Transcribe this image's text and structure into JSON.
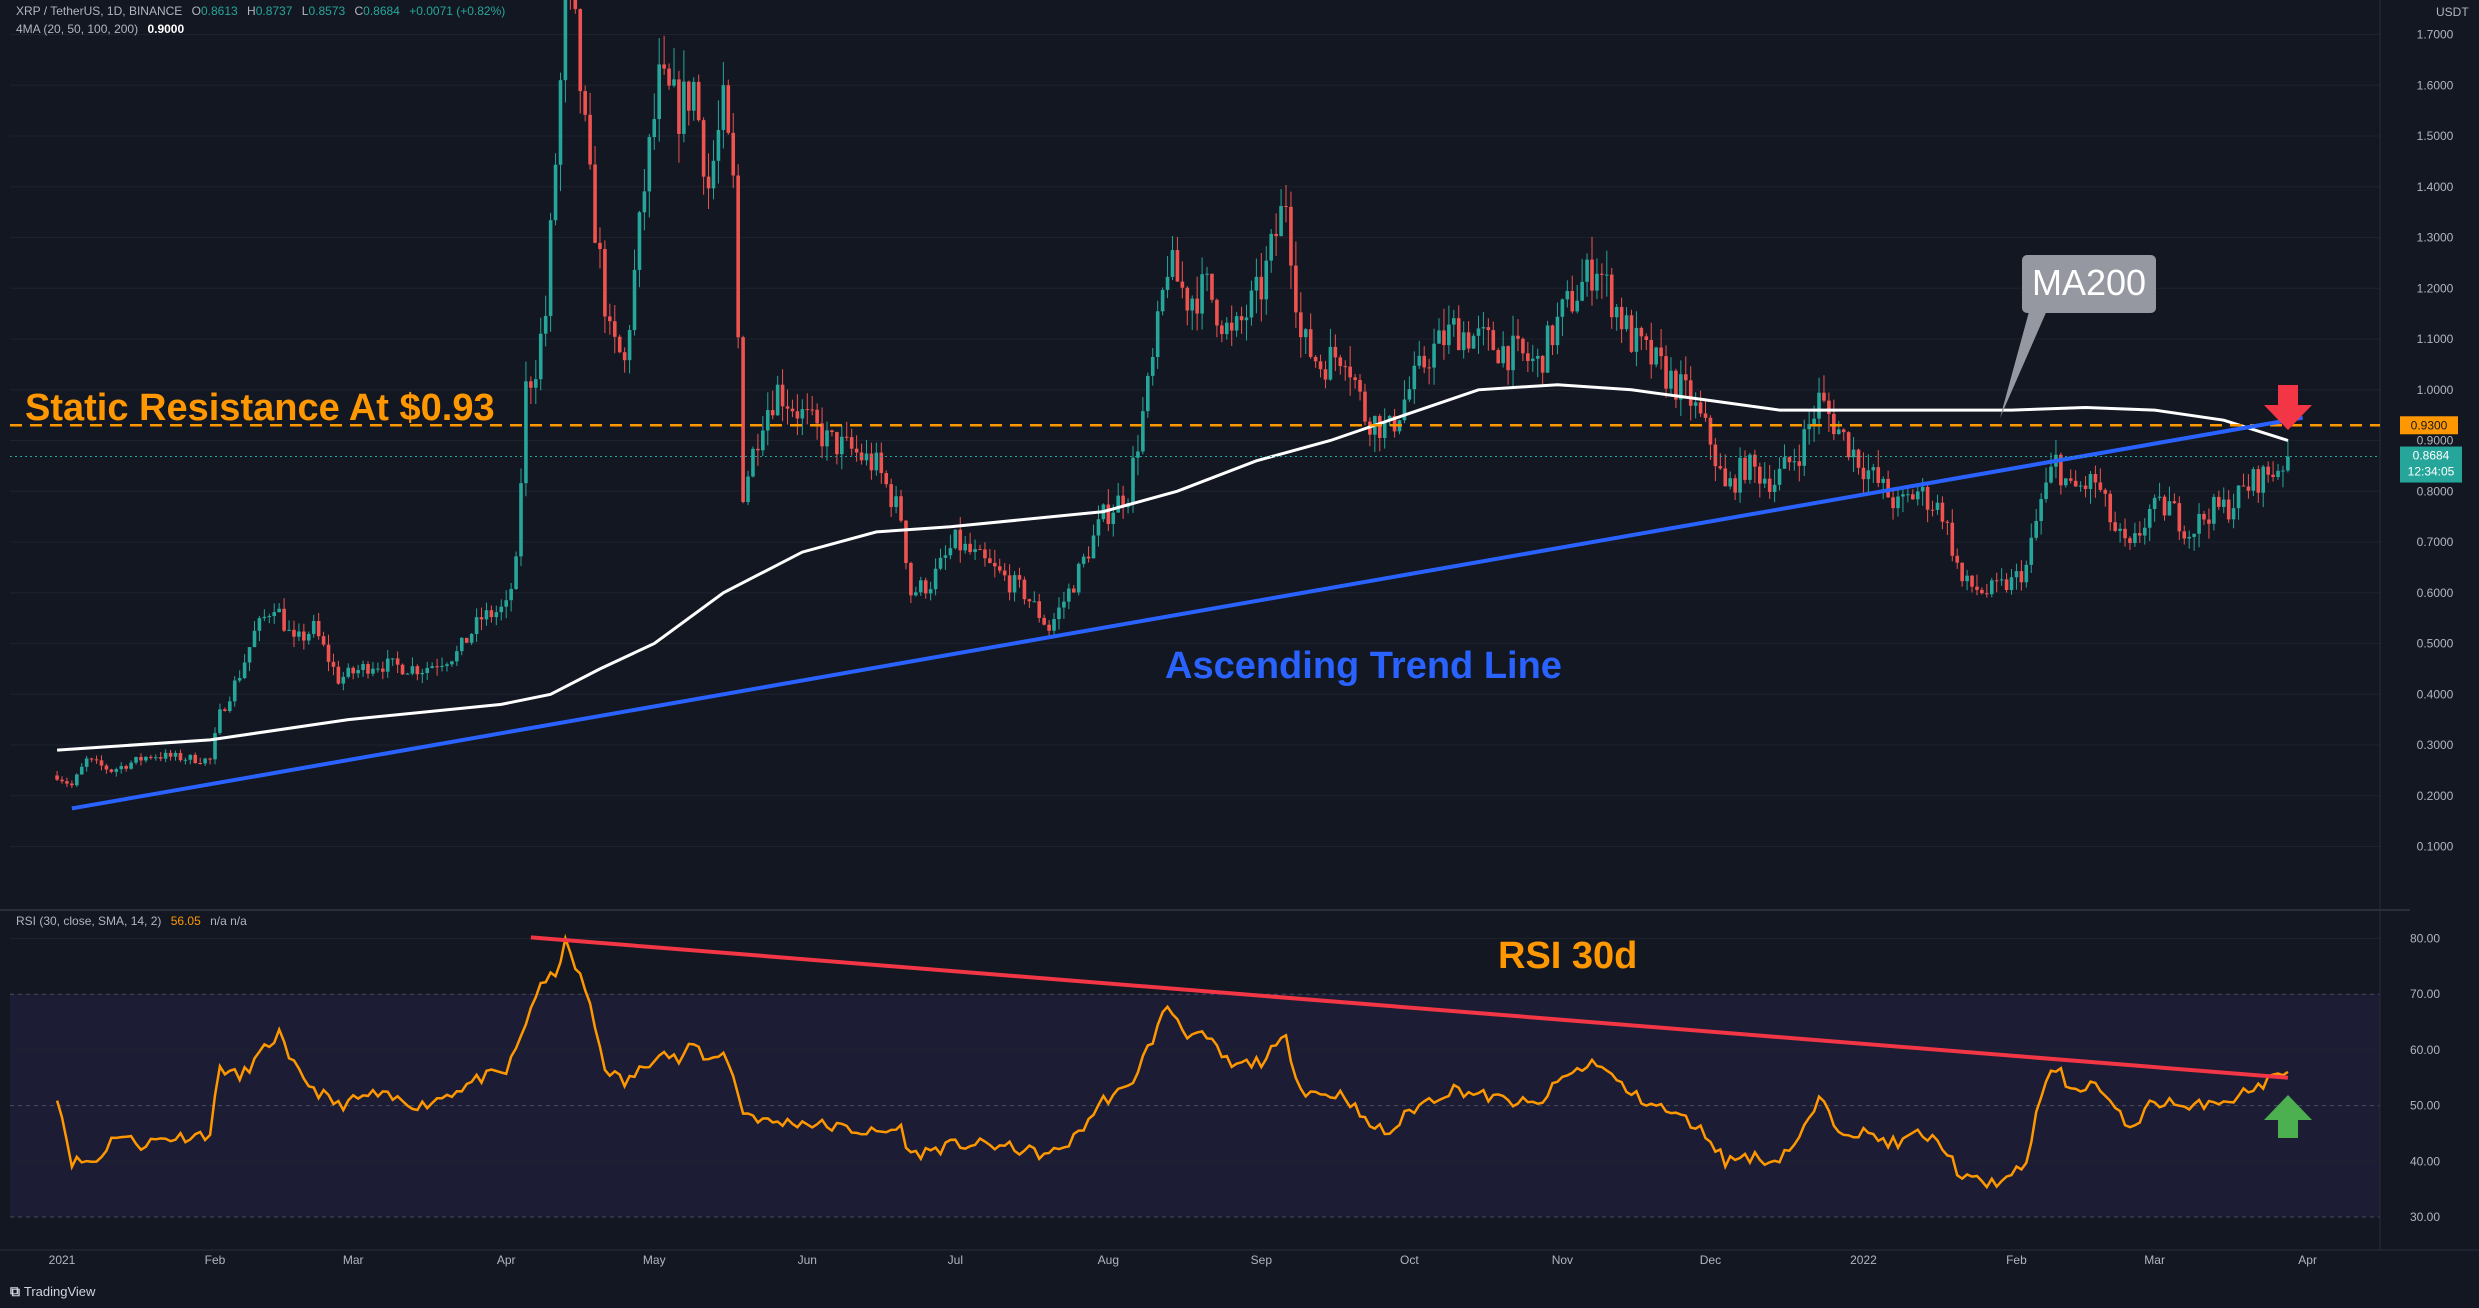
{
  "header": {
    "symbol": "XRP / TetherUS, 1D, BINANCE",
    "o_label": "O",
    "o": "0.8613",
    "h_label": "H",
    "h": "0.8737",
    "l_label": "L",
    "l": "0.8573",
    "c_label": "C",
    "c": "0.8684",
    "change": "+0.0071 (+0.82%)",
    "ma_label": "4MA (20, 50, 100, 200)",
    "ma_value": "0.9000",
    "rsi_label": "RSI (30, close, SMA, 14, 2)",
    "rsi_value": "56.05",
    "rsi_na": "n/a  n/a"
  },
  "price_axis": {
    "currency": "USDT",
    "ticks": [
      "1.7000",
      "1.6000",
      "1.5000",
      "1.4000",
      "1.3000",
      "1.2000",
      "1.1000",
      "1.0000",
      "0.9000",
      "0.8000",
      "0.7000",
      "0.6000",
      "0.5000",
      "0.4000",
      "0.3000",
      "0.2000",
      "0.1000"
    ],
    "resistance_tag": "0.9300",
    "last_price_tag": "0.8684",
    "countdown_tag": "12:34:05"
  },
  "rsi_axis": {
    "ticks": [
      "80.00",
      "70.00",
      "60.00",
      "50.00",
      "40.00",
      "30.00"
    ]
  },
  "time_axis": {
    "labels": [
      "2021",
      "Feb",
      "Mar",
      "Apr",
      "May",
      "Jun",
      "Jul",
      "Aug",
      "Sep",
      "Oct",
      "Nov",
      "Dec",
      "2022",
      "Feb",
      "Mar",
      "Apr"
    ]
  },
  "annotations": {
    "resistance_label": "Static Resistance At $0.93",
    "ma200_label": "MA200",
    "trendline_label": "Ascending Trend Line",
    "rsi_label": "RSI 30d"
  },
  "watermark": "TradingView",
  "colors": {
    "background": "#131722",
    "up_candle": "#26a69a",
    "down_candle": "#ef5350",
    "ma200": "#ffffff",
    "trend_line": "#2962ff",
    "resistance": "#ff9800",
    "rsi_line": "#ff9800",
    "rsi_trend": "#f23645",
    "arrow_down": "#f23645",
    "arrow_up": "#4caf50",
    "label_orange": "#ff9800",
    "label_blue": "#2962ff"
  },
  "chart_data": [
    {
      "type": "candlestick",
      "title": "XRP / TetherUS, 1D, BINANCE",
      "ylabel": "USDT",
      "ylim": [
        0.05,
        1.8
      ],
      "x_range": [
        "2020-12-31",
        "2022-03-28"
      ],
      "anchors": [
        [
          "2020-12-31",
          0.24
        ],
        [
          "2021-01-03",
          0.22
        ],
        [
          "2021-01-06",
          0.27
        ],
        [
          "2021-01-11",
          0.25
        ],
        [
          "2021-01-19",
          0.28
        ],
        [
          "2021-01-31",
          0.27
        ],
        [
          "2021-02-02",
          0.36
        ],
        [
          "2021-02-06",
          0.44
        ],
        [
          "2021-02-09",
          0.52
        ],
        [
          "2021-02-13",
          0.58
        ],
        [
          "2021-02-17",
          0.5
        ],
        [
          "2021-02-21",
          0.53
        ],
        [
          "2021-02-26",
          0.43
        ],
        [
          "2021-03-05",
          0.46
        ],
        [
          "2021-03-15",
          0.45
        ],
        [
          "2021-03-22",
          0.48
        ],
        [
          "2021-03-27",
          0.55
        ],
        [
          "2021-04-01",
          0.57
        ],
        [
          "2021-04-03",
          0.65
        ],
        [
          "2021-04-05",
          1.0
        ],
        [
          "2021-04-07",
          1.05
        ],
        [
          "2021-04-09",
          1.15
        ],
        [
          "2021-04-11",
          1.45
        ],
        [
          "2021-04-13",
          1.75
        ],
        [
          "2021-04-15",
          1.7
        ],
        [
          "2021-04-18",
          1.4
        ],
        [
          "2021-04-22",
          1.1
        ],
        [
          "2021-04-25",
          1.05
        ],
        [
          "2021-04-29",
          1.4
        ],
        [
          "2021-05-02",
          1.6
        ],
        [
          "2021-05-06",
          1.55
        ],
        [
          "2021-05-09",
          1.6
        ],
        [
          "2021-05-12",
          1.4
        ],
        [
          "2021-05-15",
          1.55
        ],
        [
          "2021-05-17",
          1.4
        ],
        [
          "2021-05-19",
          0.8
        ],
        [
          "2021-05-23",
          0.95
        ],
        [
          "2021-05-26",
          1.0
        ],
        [
          "2021-05-31",
          0.95
        ],
        [
          "2021-06-05",
          0.9
        ],
        [
          "2021-06-10",
          0.88
        ],
        [
          "2021-06-15",
          0.85
        ],
        [
          "2021-06-20",
          0.75
        ],
        [
          "2021-06-22",
          0.6
        ],
        [
          "2021-06-26",
          0.62
        ],
        [
          "2021-07-01",
          0.7
        ],
        [
          "2021-07-08",
          0.65
        ],
        [
          "2021-07-15",
          0.6
        ],
        [
          "2021-07-20",
          0.53
        ],
        [
          "2021-07-25",
          0.62
        ],
        [
          "2021-07-31",
          0.75
        ],
        [
          "2021-08-05",
          0.8
        ],
        [
          "2021-08-10",
          1.05
        ],
        [
          "2021-08-13",
          1.25
        ],
        [
          "2021-08-17",
          1.18
        ],
        [
          "2021-08-21",
          1.2
        ],
        [
          "2021-08-26",
          1.1
        ],
        [
          "2021-09-01",
          1.2
        ],
        [
          "2021-09-06",
          1.38
        ],
        [
          "2021-09-09",
          1.1
        ],
        [
          "2021-09-13",
          1.05
        ],
        [
          "2021-09-18",
          1.08
        ],
        [
          "2021-09-22",
          0.95
        ],
        [
          "2021-09-27",
          0.92
        ],
        [
          "2021-10-01",
          1.0
        ],
        [
          "2021-10-05",
          1.07
        ],
        [
          "2021-10-10",
          1.12
        ],
        [
          "2021-10-15",
          1.1
        ],
        [
          "2021-10-20",
          1.08
        ],
        [
          "2021-10-27",
          1.05
        ],
        [
          "2021-11-01",
          1.15
        ],
        [
          "2021-11-08",
          1.25
        ],
        [
          "2021-11-10",
          1.2
        ],
        [
          "2021-11-15",
          1.1
        ],
        [
          "2021-11-20",
          1.05
        ],
        [
          "2021-11-27",
          0.98
        ],
        [
          "2021-12-01",
          0.9
        ],
        [
          "2021-12-04",
          0.8
        ],
        [
          "2021-12-08",
          0.85
        ],
        [
          "2021-12-14",
          0.82
        ],
        [
          "2021-12-19",
          0.88
        ],
        [
          "2021-12-23",
          0.98
        ],
        [
          "2021-12-27",
          0.92
        ],
        [
          "2022-01-01",
          0.85
        ],
        [
          "2022-01-08",
          0.77
        ],
        [
          "2022-01-12",
          0.8
        ],
        [
          "2022-01-17",
          0.76
        ],
        [
          "2022-01-21",
          0.62
        ],
        [
          "2022-01-26",
          0.6
        ],
        [
          "2022-01-31",
          0.62
        ],
        [
          "2022-02-03",
          0.65
        ],
        [
          "2022-02-06",
          0.78
        ],
        [
          "2022-02-09",
          0.86
        ],
        [
          "2022-02-12",
          0.8
        ],
        [
          "2022-02-17",
          0.82
        ],
        [
          "2022-02-21",
          0.72
        ],
        [
          "2022-02-24",
          0.68
        ],
        [
          "2022-02-28",
          0.76
        ],
        [
          "2022-03-04",
          0.77
        ],
        [
          "2022-03-08",
          0.72
        ],
        [
          "2022-03-12",
          0.76
        ],
        [
          "2022-03-16",
          0.77
        ],
        [
          "2022-03-21",
          0.82
        ],
        [
          "2022-03-25",
          0.84
        ],
        [
          "2022-03-28",
          0.8684
        ]
      ],
      "ma200": [
        [
          "2020-12-31",
          0.29
        ],
        [
          "2021-01-31",
          0.31
        ],
        [
          "2021-02-28",
          0.35
        ],
        [
          "2021-03-31",
          0.38
        ],
        [
          "2021-04-10",
          0.4
        ],
        [
          "2021-04-20",
          0.45
        ],
        [
          "2021-05-01",
          0.5
        ],
        [
          "2021-05-15",
          0.6
        ],
        [
          "2021-05-31",
          0.68
        ],
        [
          "2021-06-15",
          0.72
        ],
        [
          "2021-06-30",
          0.73
        ],
        [
          "2021-07-31",
          0.76
        ],
        [
          "2021-08-15",
          0.8
        ],
        [
          "2021-08-31",
          0.86
        ],
        [
          "2021-09-15",
          0.9
        ],
        [
          "2021-09-30",
          0.95
        ],
        [
          "2021-10-15",
          1.0
        ],
        [
          "2021-10-31",
          1.01
        ],
        [
          "2021-11-15",
          1.0
        ],
        [
          "2021-11-30",
          0.98
        ],
        [
          "2021-12-15",
          0.96
        ],
        [
          "2021-12-31",
          0.96
        ],
        [
          "2022-01-31",
          0.96
        ],
        [
          "2022-02-15",
          0.965
        ],
        [
          "2022-03-01",
          0.96
        ],
        [
          "2022-03-15",
          0.94
        ],
        [
          "2022-03-28",
          0.9
        ]
      ],
      "resistance_level": 0.93,
      "trend_line": [
        [
          "2021-01-03",
          0.175
        ],
        [
          "2022-03-31",
          0.945
        ]
      ]
    },
    {
      "type": "line",
      "title": "RSI (30, close, SMA, 14, 2)",
      "ylim": [
        30,
        80
      ],
      "bands": [
        30,
        50,
        70
      ],
      "x_range": [
        "2020-12-31",
        "2022-03-28"
      ],
      "anchors": [
        [
          "2020-12-31",
          52
        ],
        [
          "2021-01-03",
          40
        ],
        [
          "2021-01-08",
          40
        ],
        [
          "2021-01-12",
          45
        ],
        [
          "2021-01-17",
          43
        ],
        [
          "2021-01-21",
          44
        ],
        [
          "2021-01-31",
          45
        ],
        [
          "2021-02-02",
          57
        ],
        [
          "2021-02-06",
          55
        ],
        [
          "2021-02-09",
          58
        ],
        [
          "2021-02-14",
          63
        ],
        [
          "2021-02-16",
          58
        ],
        [
          "2021-02-21",
          53
        ],
        [
          "2021-02-26",
          50
        ],
        [
          "2021-03-05",
          52
        ],
        [
          "2021-03-15",
          50
        ],
        [
          "2021-03-20",
          52
        ],
        [
          "2021-03-27",
          55
        ],
        [
          "2021-04-01",
          56
        ],
        [
          "2021-04-03",
          60
        ],
        [
          "2021-04-07",
          70
        ],
        [
          "2021-04-09",
          72
        ],
        [
          "2021-04-11",
          74
        ],
        [
          "2021-04-13",
          79
        ],
        [
          "2021-04-17",
          71
        ],
        [
          "2021-04-21",
          57
        ],
        [
          "2021-04-25",
          54
        ],
        [
          "2021-04-29",
          57
        ],
        [
          "2021-05-02",
          60
        ],
        [
          "2021-05-06",
          58
        ],
        [
          "2021-05-09",
          61
        ],
        [
          "2021-05-12",
          58
        ],
        [
          "2021-05-15",
          60
        ],
        [
          "2021-05-17",
          55
        ],
        [
          "2021-05-19",
          49
        ],
        [
          "2021-05-24",
          47
        ],
        [
          "2021-05-31",
          47
        ],
        [
          "2021-06-08",
          46
        ],
        [
          "2021-06-15",
          45
        ],
        [
          "2021-06-20",
          46
        ],
        [
          "2021-06-22",
          41
        ],
        [
          "2021-06-26",
          42
        ],
        [
          "2021-07-01",
          43
        ],
        [
          "2021-07-08",
          43
        ],
        [
          "2021-07-15",
          42
        ],
        [
          "2021-07-20",
          41
        ],
        [
          "2021-07-25",
          44
        ],
        [
          "2021-07-31",
          51
        ],
        [
          "2021-08-05",
          53
        ],
        [
          "2021-08-10",
          62
        ],
        [
          "2021-08-13",
          68
        ],
        [
          "2021-08-17",
          63
        ],
        [
          "2021-08-21",
          62
        ],
        [
          "2021-08-26",
          57
        ],
        [
          "2021-09-01",
          58
        ],
        [
          "2021-09-06",
          62
        ],
        [
          "2021-09-09",
          53
        ],
        [
          "2021-09-13",
          52
        ],
        [
          "2021-09-18",
          52
        ],
        [
          "2021-09-22",
          47
        ],
        [
          "2021-09-27",
          45
        ],
        [
          "2021-10-01",
          49
        ],
        [
          "2021-10-05",
          51
        ],
        [
          "2021-10-10",
          53
        ],
        [
          "2021-10-15",
          52
        ],
        [
          "2021-10-20",
          51
        ],
        [
          "2021-10-27",
          50
        ],
        [
          "2021-11-01",
          55
        ],
        [
          "2021-11-08",
          58
        ],
        [
          "2021-11-10",
          56
        ],
        [
          "2021-11-15",
          52
        ],
        [
          "2021-11-20",
          50
        ],
        [
          "2021-11-27",
          47
        ],
        [
          "2021-12-01",
          44
        ],
        [
          "2021-12-04",
          40
        ],
        [
          "2021-12-08",
          41
        ],
        [
          "2021-12-14",
          40
        ],
        [
          "2021-12-19",
          44
        ],
        [
          "2021-12-23",
          51
        ],
        [
          "2021-12-27",
          46
        ],
        [
          "2022-01-01",
          45
        ],
        [
          "2022-01-08",
          43
        ],
        [
          "2022-01-12",
          45
        ],
        [
          "2022-01-17",
          43
        ],
        [
          "2022-01-21",
          37
        ],
        [
          "2022-01-26",
          36
        ],
        [
          "2022-01-31",
          37
        ],
        [
          "2022-02-03",
          40
        ],
        [
          "2022-02-06",
          52
        ],
        [
          "2022-02-09",
          57
        ],
        [
          "2022-02-12",
          53
        ],
        [
          "2022-02-17",
          54
        ],
        [
          "2022-02-21",
          49
        ],
        [
          "2022-02-24",
          46
        ],
        [
          "2022-02-28",
          50
        ],
        [
          "2022-03-04",
          51
        ],
        [
          "2022-03-08",
          49
        ],
        [
          "2022-03-12",
          51
        ],
        [
          "2022-03-16",
          51
        ],
        [
          "2022-03-21",
          53
        ],
        [
          "2022-03-25",
          55
        ],
        [
          "2022-03-28",
          56.05
        ]
      ],
      "trend_line": [
        [
          "2021-04-06",
          80.2
        ],
        [
          "2022-03-28",
          55
        ]
      ]
    }
  ]
}
